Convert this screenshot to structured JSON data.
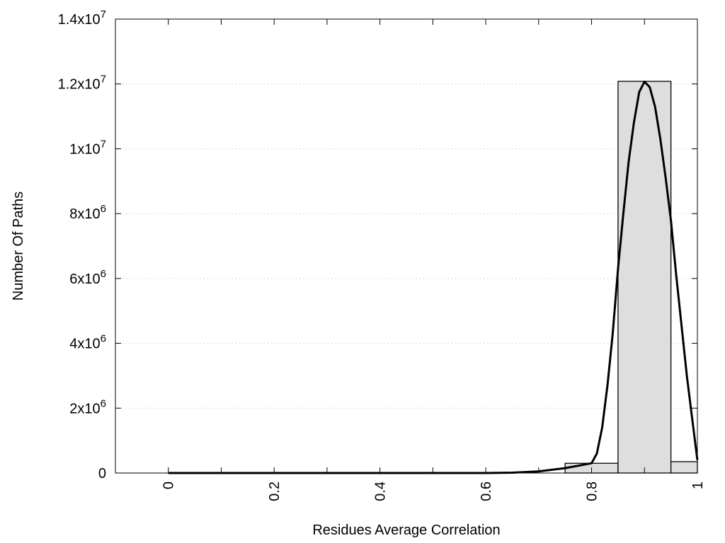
{
  "chart_data": {
    "type": "bar",
    "title": "",
    "xlabel": "Residues Average Correlation",
    "ylabel": "Number Of Paths",
    "xlim": [
      -0.1,
      1.0
    ],
    "ylim": [
      0,
      14000000
    ],
    "grid": "horizontal dotted at y ticks",
    "legend": "none",
    "x_ticks": [
      {
        "value": 0,
        "label": "0"
      },
      {
        "value": 0.2,
        "label": "0.2"
      },
      {
        "value": 0.4,
        "label": "0.4"
      },
      {
        "value": 0.6,
        "label": "0.6"
      },
      {
        "value": 0.8,
        "label": "0.8"
      },
      {
        "value": 1.0,
        "label": "1"
      }
    ],
    "x_minor_ticks": [
      0.1,
      0.3,
      0.5,
      0.7,
      0.9
    ],
    "y_ticks": [
      {
        "value": 0,
        "mantissa": "0",
        "exp": ""
      },
      {
        "value": 2000000,
        "mantissa": "2x10",
        "exp": "6"
      },
      {
        "value": 4000000,
        "mantissa": "4x10",
        "exp": "6"
      },
      {
        "value": 6000000,
        "mantissa": "6x10",
        "exp": "6"
      },
      {
        "value": 8000000,
        "mantissa": "8x10",
        "exp": "6"
      },
      {
        "value": 10000000,
        "mantissa": "1x10",
        "exp": "7"
      },
      {
        "value": 12000000,
        "mantissa": "1.2x10",
        "exp": "7"
      },
      {
        "value": 14000000,
        "mantissa": "1.4x10",
        "exp": "7"
      }
    ],
    "bars": [
      {
        "x0": 0.75,
        "x1": 0.85,
        "value": 300000
      },
      {
        "x0": 0.85,
        "x1": 0.95,
        "value": 12080000
      },
      {
        "x0": 0.95,
        "x1": 1.0,
        "value": 350000
      }
    ],
    "bar_color": "#dedede",
    "fit_curve": {
      "type": "line",
      "color": "#000000",
      "x": [
        0.0,
        0.1,
        0.2,
        0.3,
        0.4,
        0.5,
        0.6,
        0.65,
        0.7,
        0.75,
        0.8,
        0.81,
        0.82,
        0.83,
        0.84,
        0.85,
        0.86,
        0.87,
        0.88,
        0.89,
        0.9,
        0.91,
        0.92,
        0.93,
        0.94,
        0.95,
        0.96,
        0.97,
        0.98,
        0.99,
        1.0
      ],
      "y": [
        0,
        0,
        0,
        0,
        0,
        0,
        0,
        10000,
        50000,
        150000,
        300000,
        600000,
        1400000,
        2700000,
        4300000,
        6300000,
        8000000,
        9600000,
        10800000,
        11750000,
        12070000,
        11900000,
        11300000,
        10300000,
        9100000,
        7800000,
        6100000,
        4550000,
        3000000,
        1700000,
        400000
      ]
    }
  }
}
